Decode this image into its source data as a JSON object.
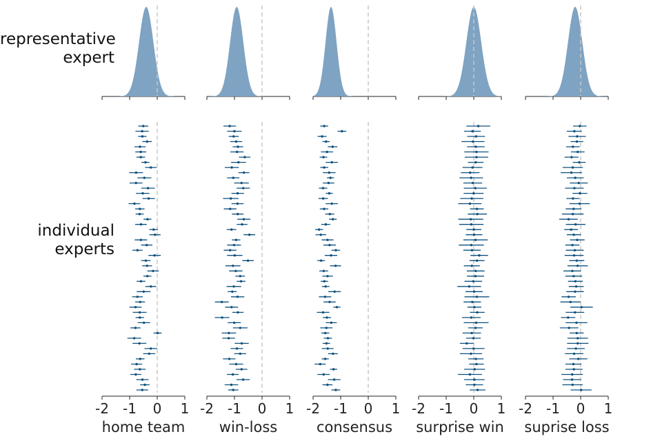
{
  "row_labels": {
    "top": "representative\nexpert",
    "bottom": "individual\nexperts"
  },
  "colors": {
    "density_fill": "#7fa3c2",
    "interval": "#0d4f7d",
    "reference_line": "#c8c8c8",
    "axis": "#222222"
  },
  "chart_data": [
    {
      "type": "area",
      "panel": "home team",
      "xlabel": "home team",
      "xlim": [
        -2,
        1
      ],
      "xticks": [
        -2,
        -1,
        0,
        1
      ],
      "reference_x": 0,
      "density": {
        "mean": -0.4,
        "sd": 0.26
      },
      "expert_intervals": {
        "type": "scatter",
        "n": 52,
        "center_mean": -0.45,
        "center_spread": 0.2,
        "half_width_mean": 0.2,
        "seed": 11
      }
    },
    {
      "type": "area",
      "panel": "win-loss",
      "xlabel": "win-loss",
      "xlim": [
        -2,
        1
      ],
      "xticks": [
        -2,
        -1,
        0,
        1
      ],
      "reference_x": 0,
      "density": {
        "mean": -0.92,
        "sd": 0.24
      },
      "expert_intervals": {
        "type": "scatter",
        "n": 52,
        "center_mean": -0.95,
        "center_spread": 0.2,
        "half_width_mean": 0.22,
        "seed": 23
      }
    },
    {
      "type": "area",
      "panel": "consensus",
      "xlabel": "consensus",
      "xlim": [
        -2,
        1
      ],
      "xticks": [
        -2,
        -1,
        0,
        1
      ],
      "reference_x": 0,
      "density": {
        "mean": -1.35,
        "sd": 0.2
      },
      "expert_intervals": {
        "type": "scatter",
        "n": 52,
        "center_mean": -1.4,
        "center_spread": 0.18,
        "half_width_mean": 0.18,
        "seed": 37
      }
    },
    {
      "type": "area",
      "panel": "surprise win",
      "xlabel": "surprise win",
      "xlim": [
        -2,
        1
      ],
      "xticks": [
        -2,
        -1,
        0,
        1
      ],
      "reference_x": 0,
      "density": {
        "mean": 0.0,
        "sd": 0.27
      },
      "expert_intervals": {
        "type": "scatter",
        "n": 52,
        "center_mean": 0.0,
        "center_spread": 0.1,
        "half_width_mean": 0.35,
        "seed": 41
      }
    },
    {
      "type": "area",
      "panel": "suprise loss",
      "xlabel": "suprise loss",
      "xlim": [
        -2,
        1
      ],
      "xticks": [
        -2,
        -1,
        0,
        1
      ],
      "reference_x": 0,
      "density": {
        "mean": -0.2,
        "sd": 0.26
      },
      "expert_intervals": {
        "type": "scatter",
        "n": 52,
        "center_mean": -0.2,
        "center_spread": 0.12,
        "half_width_mean": 0.32,
        "seed": 53
      }
    }
  ]
}
